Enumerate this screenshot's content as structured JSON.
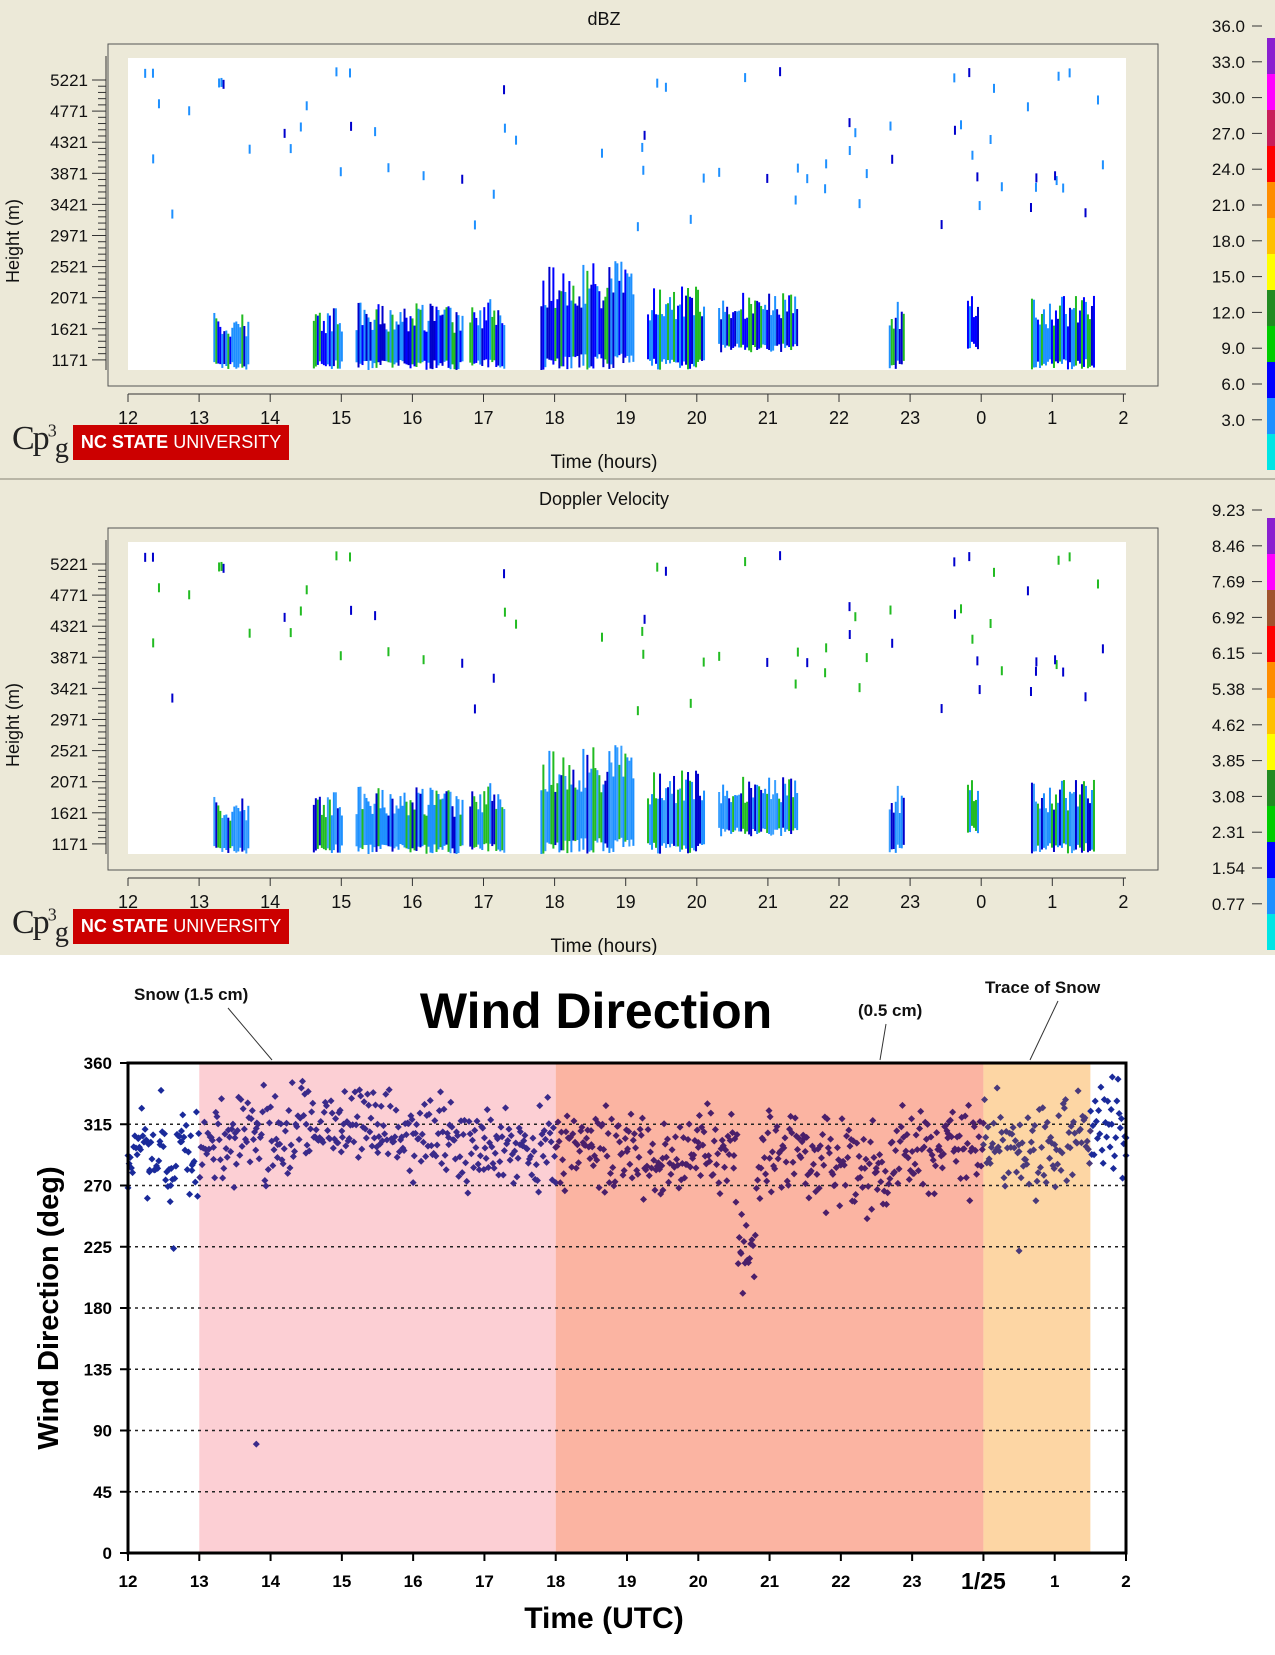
{
  "radar_dbz": {
    "title": "dBZ",
    "ylabel": "Height (m)",
    "xlabel": "Time (hours)",
    "yticks": [
      "5221",
      "4771",
      "4321",
      "3871",
      "3421",
      "2971",
      "2521",
      "2071",
      "1621",
      "1171"
    ],
    "xticks": [
      "12",
      "13",
      "14",
      "15",
      "16",
      "17",
      "18",
      "19",
      "20",
      "21",
      "22",
      "23",
      "0",
      "1",
      "2"
    ],
    "colorbar": [
      "36.0",
      "33.0",
      "30.0",
      "27.0",
      "24.0",
      "21.0",
      "18.0",
      "15.0",
      "12.0",
      "9.0",
      "6.0",
      "3.0"
    ],
    "colorbar_colors": [
      "#8a1fd0",
      "#ff00ff",
      "#c81e5a",
      "#ff0000",
      "#ff8c00",
      "#ffc000",
      "#ffff00",
      "#228b22",
      "#00cc00",
      "#0000ff",
      "#1e90ff",
      "#00e5e5"
    ]
  },
  "radar_vel": {
    "title": "Doppler Velocity",
    "ylabel": "Height (m)",
    "xlabel": "Time (hours)",
    "yticks": [
      "5221",
      "4771",
      "4321",
      "3871",
      "3421",
      "2971",
      "2521",
      "2071",
      "1621",
      "1171"
    ],
    "xticks": [
      "12",
      "13",
      "14",
      "15",
      "16",
      "17",
      "18",
      "19",
      "20",
      "21",
      "22",
      "23",
      "0",
      "1",
      "2"
    ],
    "colorbar": [
      "9.23",
      "8.46",
      "7.69",
      "6.92",
      "6.15",
      "5.38",
      "4.62",
      "3.85",
      "3.08",
      "2.31",
      "1.54",
      "0.77"
    ],
    "colorbar_colors": [
      "#8a1fd0",
      "#ff00ff",
      "#a0522d",
      "#ff0000",
      "#ff8c00",
      "#ffc000",
      "#ffff00",
      "#228b22",
      "#00cc00",
      "#0000ff",
      "#1e90ff",
      "#00e5e5"
    ]
  },
  "logo": {
    "cp3": "Cp",
    "cp3_sup": "3",
    "cp3_sub": "g",
    "ncsu_bold": "NC STATE",
    "ncsu_rest": " UNIVERSITY"
  },
  "chart_data": [
    {
      "type": "heatmap",
      "title": "dBZ",
      "xlabel": "Time (hours)",
      "ylabel": "Height (m)",
      "xticks": [
        "12",
        "13",
        "14",
        "15",
        "16",
        "17",
        "18",
        "19",
        "20",
        "21",
        "22",
        "23",
        "0",
        "1",
        "2"
      ],
      "yticks": [
        5221,
        4771,
        4321,
        3871,
        3421,
        2971,
        2521,
        2071,
        1621,
        1171
      ],
      "colorbar": [
        36.0,
        33.0,
        30.0,
        27.0,
        24.0,
        21.0,
        18.0,
        15.0,
        12.0,
        9.0,
        6.0,
        3.0
      ],
      "echo_blocks": [
        {
          "t0": 13.2,
          "t1": 13.7,
          "h0": 1171,
          "h1": 1850
        },
        {
          "t0": 14.6,
          "t1": 15.0,
          "h0": 1171,
          "h1": 1950
        },
        {
          "t0": 15.2,
          "t1": 16.7,
          "h0": 1171,
          "h1": 2000
        },
        {
          "t0": 16.8,
          "t1": 17.3,
          "h0": 1171,
          "h1": 2100
        },
        {
          "t0": 17.8,
          "t1": 19.1,
          "h0": 1171,
          "h1": 2600
        },
        {
          "t0": 19.3,
          "t1": 20.1,
          "h0": 1171,
          "h1": 2300
        },
        {
          "t0": 20.3,
          "t1": 21.4,
          "h0": 1450,
          "h1": 2150
        },
        {
          "t0": 22.7,
          "t1": 22.9,
          "h0": 1171,
          "h1": 2100
        },
        {
          "t0": 23.8,
          "t1": 23.95,
          "h0": 1500,
          "h1": 2100
        },
        {
          "t0": 0.7,
          "t1": 1.6,
          "h0": 1171,
          "h1": 2100
        }
      ]
    },
    {
      "type": "heatmap",
      "title": "Doppler Velocity",
      "xlabel": "Time (hours)",
      "ylabel": "Height (m)",
      "xticks": [
        "12",
        "13",
        "14",
        "15",
        "16",
        "17",
        "18",
        "19",
        "20",
        "21",
        "22",
        "23",
        "0",
        "1",
        "2"
      ],
      "yticks": [
        5221,
        4771,
        4321,
        3871,
        3421,
        2971,
        2521,
        2071,
        1621,
        1171
      ],
      "colorbar": [
        9.23,
        8.46,
        7.69,
        6.92,
        6.15,
        5.38,
        4.62,
        3.85,
        3.08,
        2.31,
        1.54,
        0.77
      ],
      "echo_blocks": [
        {
          "t0": 13.2,
          "t1": 13.7,
          "h0": 1171,
          "h1": 1850
        },
        {
          "t0": 14.6,
          "t1": 15.0,
          "h0": 1171,
          "h1": 1950
        },
        {
          "t0": 15.2,
          "t1": 16.7,
          "h0": 1171,
          "h1": 2000
        },
        {
          "t0": 16.8,
          "t1": 17.3,
          "h0": 1171,
          "h1": 2100
        },
        {
          "t0": 17.8,
          "t1": 19.1,
          "h0": 1171,
          "h1": 2600
        },
        {
          "t0": 19.3,
          "t1": 20.1,
          "h0": 1171,
          "h1": 2300
        },
        {
          "t0": 20.3,
          "t1": 21.4,
          "h0": 1450,
          "h1": 2150
        },
        {
          "t0": 22.7,
          "t1": 22.9,
          "h0": 1171,
          "h1": 2100
        },
        {
          "t0": 23.8,
          "t1": 23.95,
          "h0": 1500,
          "h1": 2100
        },
        {
          "t0": 0.7,
          "t1": 1.6,
          "h0": 1171,
          "h1": 2100
        }
      ]
    },
    {
      "type": "scatter",
      "title": "Wind Direction",
      "xlabel": "Time (UTC)",
      "ylabel": "Wind Direction (deg)",
      "ylim": [
        0,
        360
      ],
      "yticks": [
        0,
        45,
        90,
        135,
        180,
        225,
        270,
        315,
        360
      ],
      "xticks": [
        "12",
        "13",
        "14",
        "15",
        "16",
        "17",
        "18",
        "19",
        "20",
        "21",
        "22",
        "23",
        "1/25",
        "1",
        "2"
      ],
      "xlim_hours": [
        12,
        26
      ],
      "grid": "dotted horizontal",
      "annotations": [
        "Snow  (1.5 cm)",
        "(0.5 cm)",
        "Trace of Snow"
      ],
      "shaded_periods": [
        {
          "start": 13,
          "end": 18,
          "color": "#fccfd4"
        },
        {
          "start": 18,
          "end": 24,
          "color": "#fbb4a2"
        },
        {
          "start": 24,
          "end": 25.5,
          "color": "#fdd6a4"
        }
      ],
      "series": [
        {
          "points": [
            [
              12.0,
              292
            ],
            [
              12.15,
              305
            ],
            [
              12.3,
              280
            ],
            [
              12.45,
              300
            ],
            [
              12.6,
              270
            ],
            [
              12.75,
              310
            ],
            [
              12.9,
              285
            ],
            [
              13.2,
              298
            ],
            [
              13.5,
              305
            ],
            [
              13.8,
              312
            ],
            [
              13.8,
              80
            ],
            [
              14.1,
              300
            ],
            [
              14.5,
              315
            ],
            [
              15.0,
              310
            ],
            [
              15.5,
              315
            ],
            [
              16.0,
              308
            ],
            [
              16.5,
              300
            ],
            [
              17.0,
              305
            ],
            [
              17.5,
              300
            ],
            [
              18.0,
              298
            ],
            [
              18.5,
              300
            ],
            [
              19.0,
              295
            ],
            [
              19.5,
              290
            ],
            [
              20.0,
              298
            ],
            [
              20.5,
              292
            ],
            [
              20.6,
              220
            ],
            [
              21.0,
              290
            ],
            [
              21.5,
              295
            ],
            [
              22.0,
              285
            ],
            [
              22.5,
              280
            ],
            [
              23.0,
              295
            ],
            [
              23.5,
              305
            ],
            [
              24.0,
              300
            ],
            [
              24.5,
              295
            ],
            [
              24.5,
              222
            ],
            [
              25.0,
              300
            ],
            [
              25.5,
              310
            ],
            [
              25.8,
              315
            ],
            [
              26.0,
              305
            ]
          ]
        }
      ]
    }
  ]
}
